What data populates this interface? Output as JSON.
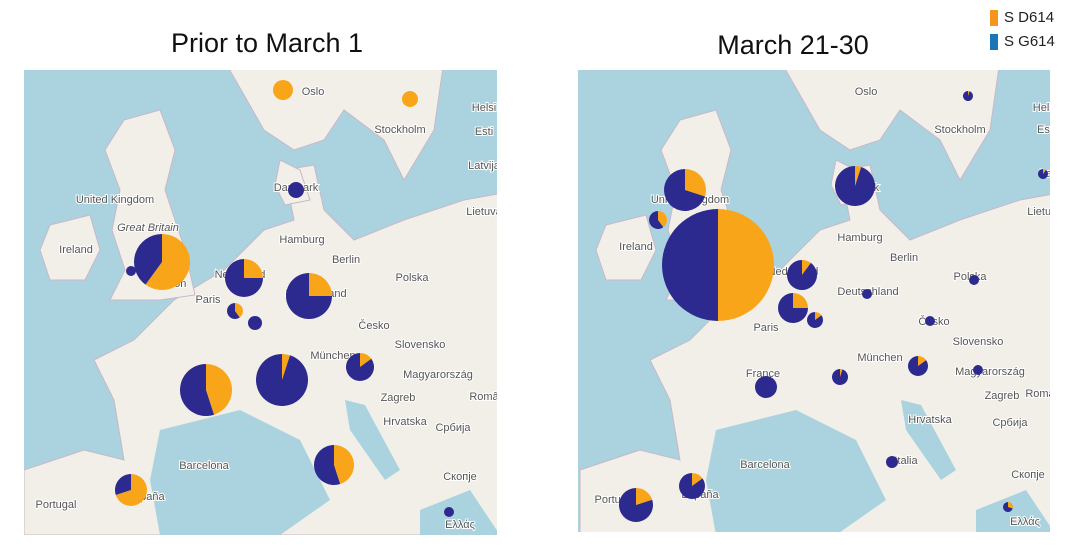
{
  "legend": [
    {
      "label": "S D614",
      "color": "#f7941d"
    },
    {
      "label": "S G614",
      "color": "#1b75bb"
    }
  ],
  "pie_colors": [
    "#f9a51a",
    "#2d2a8f"
  ],
  "maps": [
    {
      "title": "Prior to March 1",
      "labels": [
        "Oslo",
        "Stockholm",
        "Helsi",
        "Esti",
        "Latvija",
        "Lietuva",
        "Danmark",
        "United Kingdom",
        "Great Britain",
        "Ireland",
        "Hamburg",
        "Berlin",
        "Polska",
        "Nederland",
        "Deutschland",
        "London",
        "Paris",
        "Česko",
        "Slovensko",
        "München",
        "Magyarország",
        "Zagreb",
        "Româ",
        "Hrvatska",
        "Србија",
        "Barcelona",
        "Скопје",
        "Portugal",
        "España",
        "Ελλάς"
      ],
      "pies": [
        {
          "values": [
            100,
            0
          ]
        },
        {
          "values": [
            100,
            0
          ]
        },
        {
          "values": [
            0,
            100
          ]
        },
        {
          "values": [
            60,
            40
          ]
        },
        {
          "values": [
            0,
            100
          ]
        },
        {
          "values": [
            25,
            75
          ]
        },
        {
          "values": [
            25,
            75
          ]
        },
        {
          "values": [
            40,
            60
          ]
        },
        {
          "values": [
            0,
            100
          ]
        },
        {
          "values": [
            45,
            55
          ]
        },
        {
          "values": [
            5,
            95
          ]
        },
        {
          "values": [
            15,
            85
          ]
        },
        {
          "values": [
            45,
            55
          ]
        },
        {
          "values": [
            70,
            30
          ]
        },
        {
          "values": [
            0,
            100
          ]
        }
      ]
    },
    {
      "title": "March 21-30",
      "labels": [
        "Oslo",
        "Stockholm",
        "Helsi",
        "Est",
        "Latv",
        "Lietuva",
        "Danmark",
        "United Kingdom",
        "Ireland",
        "Hamburg",
        "Berlin",
        "Nederland",
        "Deutschland",
        "Polska",
        "Paris",
        "Česko",
        "Slovensko",
        "München",
        "France",
        "Magyarország",
        "Zagreb",
        "Româ",
        "Hrvatska",
        "Србија",
        "Barcelona",
        "Italia",
        "Скопје",
        "Portugal",
        "España",
        "Ελλάς"
      ],
      "pies": [
        {
          "values": [
            5,
            95
          ]
        },
        {
          "values": [
            5,
            95
          ]
        },
        {
          "values": [
            10,
            90
          ]
        },
        {
          "values": [
            30,
            70
          ]
        },
        {
          "values": [
            40,
            60
          ]
        },
        {
          "values": [
            50,
            50
          ]
        },
        {
          "values": [
            10,
            90
          ]
        },
        {
          "values": [
            25,
            75
          ]
        },
        {
          "values": [
            15,
            85
          ]
        },
        {
          "values": [
            0,
            100
          ]
        },
        {
          "values": [
            0,
            100
          ]
        },
        {
          "values": [
            0,
            100
          ]
        },
        {
          "values": [
            0,
            100
          ]
        },
        {
          "values": [
            5,
            95
          ]
        },
        {
          "values": [
            15,
            85
          ]
        },
        {
          "values": [
            0,
            100
          ]
        },
        {
          "values": [
            0,
            100
          ]
        },
        {
          "values": [
            15,
            85
          ]
        },
        {
          "values": [
            20,
            80
          ]
        },
        {
          "values": [
            30,
            70
          ]
        }
      ]
    }
  ]
}
